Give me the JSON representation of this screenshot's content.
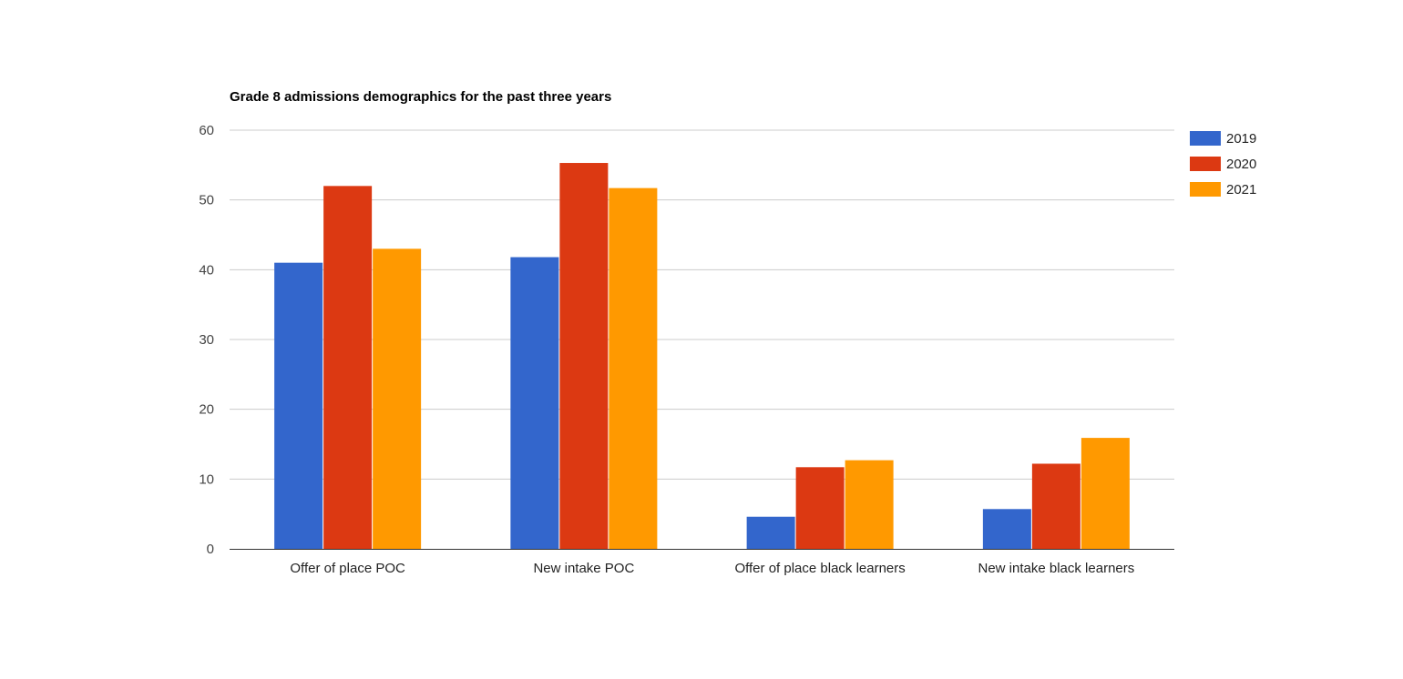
{
  "chart_data": {
    "type": "bar",
    "title": "Grade 8 admissions demographics for the past three years",
    "xlabel": "",
    "ylabel": "",
    "ylim": [
      0,
      60
    ],
    "yticks": [
      0,
      10,
      20,
      30,
      40,
      50,
      60
    ],
    "grid": true,
    "legend_position": "right",
    "categories": [
      "Offer of place POC",
      "New intake POC",
      "Offer of place black learners",
      "New intake black learners"
    ],
    "series": [
      {
        "name": "2019",
        "color": "#3366cc",
        "values": [
          41,
          41.8,
          4.6,
          5.7
        ]
      },
      {
        "name": "2020",
        "color": "#dc3912",
        "values": [
          52,
          55.3,
          11.7,
          12.2
        ]
      },
      {
        "name": "2021",
        "color": "#ff9900",
        "values": [
          43,
          51.7,
          12.7,
          15.9
        ]
      }
    ]
  }
}
